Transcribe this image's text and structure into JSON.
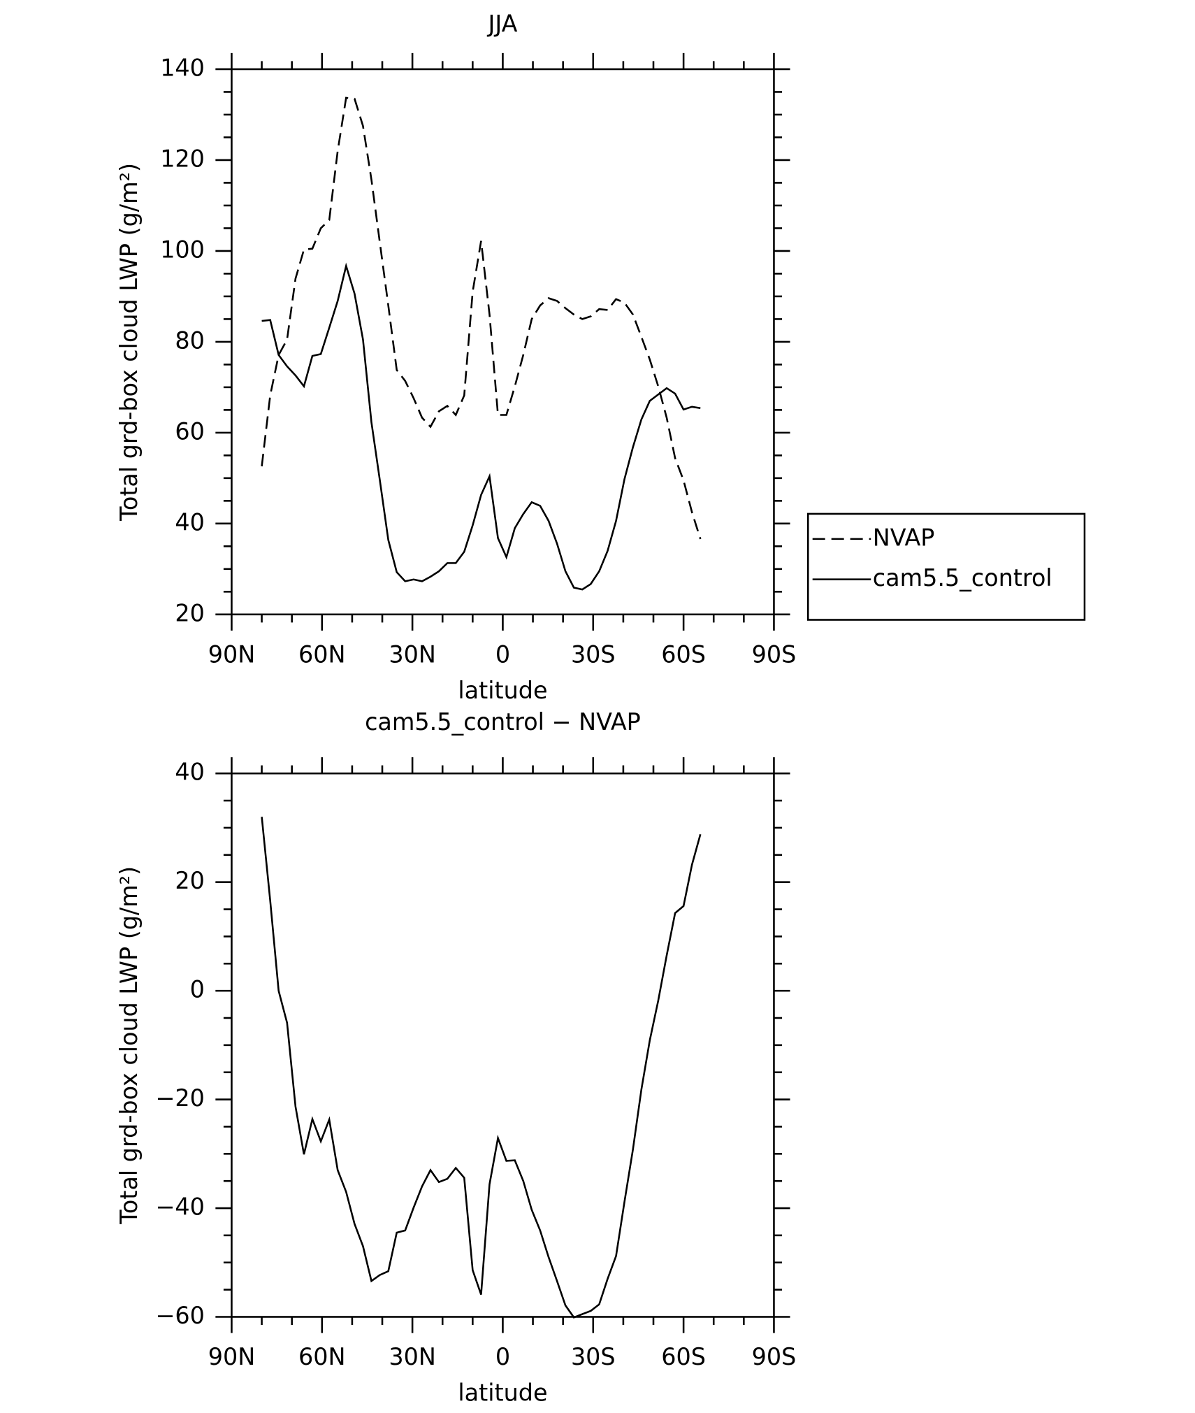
{
  "chart_data": [
    {
      "type": "line",
      "title": "JJA",
      "xlabel": "latitude",
      "ylabel": "Total grd-box cloud LWP (g/m²)",
      "x": [
        80,
        77.2,
        74.4,
        71.6,
        68.8,
        66,
        63.2,
        60.4,
        57.6,
        54.8,
        52,
        49.2,
        46.4,
        43.6,
        40.8,
        38,
        35.2,
        32.4,
        29.6,
        26.8,
        24,
        21.2,
        18.4,
        15.6,
        12.8,
        10,
        7.2,
        4.4,
        1.6,
        -1.2,
        -4,
        -6.8,
        -9.6,
        -12.4,
        -15.2,
        -18,
        -20.8,
        -23.6,
        -26.4,
        -29.2,
        -32,
        -34.8,
        -37.6,
        -40.4,
        -43.2,
        -46,
        -48.8,
        -51.6,
        -54.4,
        -57.2,
        -60,
        -62.8,
        -65.6
      ],
      "series": [
        {
          "name": "NVAP",
          "color": "#ff0000",
          "dashed": true,
          "values": [
            52.6,
            68.2,
            77.1,
            80.5,
            93.9,
            100.3,
            100.5,
            105,
            106.8,
            122,
            133.7,
            133.5,
            127.5,
            115.7,
            101.8,
            88,
            73.8,
            71.4,
            67.6,
            63.3,
            61.3,
            64.7,
            65.9,
            63.9,
            68.2,
            91,
            102.2,
            86,
            63.9,
            63.9,
            70.2,
            77.1,
            85,
            88,
            89.6,
            89,
            87.4,
            86,
            85,
            85.6,
            87.2,
            87,
            89.4,
            88.6,
            86,
            81.1,
            76.1,
            70.2,
            63.3,
            54.4,
            49.5,
            42.5,
            36.6
          ]
        },
        {
          "name": "cam5.5_control",
          "color": "#000000",
          "dashed": false,
          "values": [
            84.6,
            84.8,
            77.1,
            74.6,
            72.6,
            70.2,
            76.9,
            77.3,
            83.1,
            89,
            96.7,
            90.6,
            80.5,
            62.3,
            49.5,
            36.4,
            29.3,
            27.3,
            27.7,
            27.3,
            28.3,
            29.5,
            31.3,
            31.3,
            33.8,
            39.6,
            46.3,
            50.4,
            36.8,
            32.6,
            39,
            42.1,
            44.7,
            43.9,
            40.6,
            35.6,
            29.5,
            25.9,
            25.5,
            26.7,
            29.5,
            34,
            40.6,
            49.8,
            56.8,
            62.9,
            67,
            68.4,
            69.8,
            68.6,
            65.1,
            65.7,
            65.4
          ]
        }
      ],
      "xlim": [
        90,
        -90
      ],
      "xticks": [
        {
          "value": 90,
          "label": "90N"
        },
        {
          "value": 60,
          "label": "60N"
        },
        {
          "value": 30,
          "label": "30N"
        },
        0,
        {
          "value": -30,
          "label": "30S"
        },
        {
          "value": -60,
          "label": "60S"
        },
        {
          "value": -90,
          "label": "90S"
        }
      ],
      "ylim": [
        20,
        140
      ],
      "yticks": [
        20,
        40,
        60,
        80,
        100,
        120,
        140
      ],
      "legend": "right"
    },
    {
      "type": "line",
      "title": "cam5.5_control − NVAP",
      "xlabel": "latitude",
      "ylabel": "Total grd-box cloud LWP (g/m²)",
      "x": [
        80,
        77.2,
        74.4,
        71.6,
        68.8,
        66,
        63.2,
        60.4,
        57.6,
        54.8,
        52,
        49.2,
        46.4,
        43.6,
        40.8,
        38,
        35.2,
        32.4,
        29.6,
        26.8,
        24,
        21.2,
        18.4,
        15.6,
        12.8,
        10,
        7.2,
        4.4,
        1.6,
        -1.2,
        -4,
        -6.8,
        -9.6,
        -12.4,
        -15.2,
        -18,
        -20.8,
        -23.6,
        -26.4,
        -29.2,
        -32,
        -34.8,
        -37.6,
        -40.4,
        -43.2,
        -46,
        -48.8,
        -51.6,
        -54.4,
        -57.2,
        -60,
        -62.8,
        -65.6
      ],
      "color": "#000000",
      "values": [
        32,
        16.6,
        0,
        -5.9,
        -21.3,
        -30.1,
        -23.6,
        -27.7,
        -23.7,
        -33,
        -37,
        -42.9,
        -47,
        -53.4,
        -52.3,
        -51.6,
        -44.5,
        -44.1,
        -39.9,
        -36,
        -33,
        -35.2,
        -34.6,
        -32.6,
        -34.4,
        -51.4,
        -55.9,
        -35.6,
        -27.1,
        -31.3,
        -31.2,
        -35,
        -40.3,
        -44.1,
        -49,
        -53.4,
        -57.9,
        -60.1,
        -59.5,
        -58.9,
        -57.7,
        -53,
        -48.8,
        -38.8,
        -29.2,
        -18.2,
        -9.1,
        -1.8,
        6.5,
        14.3,
        15.6,
        23.2,
        28.8
      ],
      "xlim": [
        90,
        -90
      ],
      "xticks": [
        {
          "value": 90,
          "label": "90N"
        },
        {
          "value": 60,
          "label": "60N"
        },
        {
          "value": 30,
          "label": "30N"
        },
        0,
        {
          "value": -30,
          "label": "30S"
        },
        {
          "value": -60,
          "label": "60S"
        },
        {
          "value": -90,
          "label": "90S"
        }
      ],
      "ylim": [
        -60,
        40
      ],
      "yticks": [
        {
          "value": -60,
          "label": "−60"
        },
        {
          "value": -40,
          "label": "−40"
        },
        {
          "value": -20,
          "label": "−20"
        },
        0,
        20,
        40
      ]
    }
  ]
}
